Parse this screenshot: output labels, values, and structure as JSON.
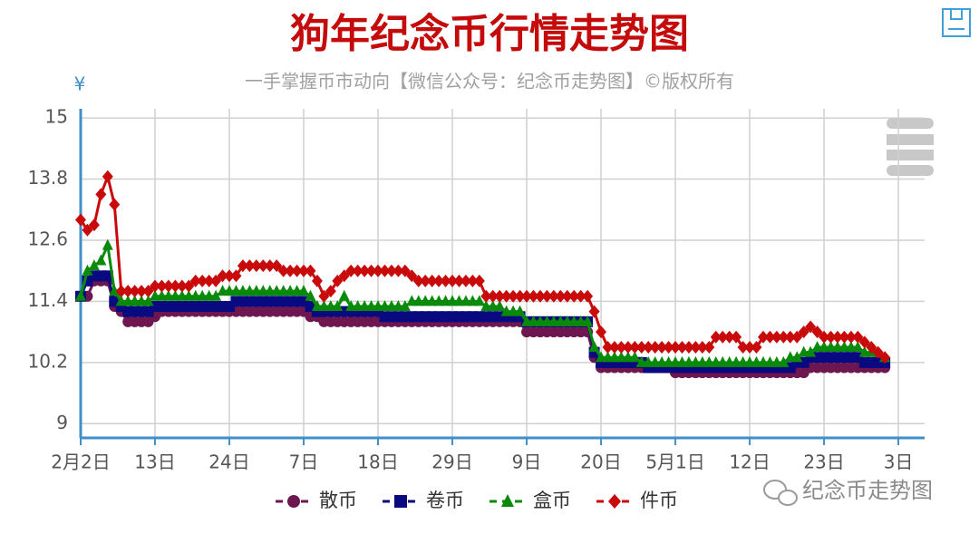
{
  "chart_data": {
    "type": "line",
    "title": "狗年纪念币行情走势图",
    "subtitle": "一手掌握币市动向【微信公众号：纪念币走势图】©版权所有",
    "y_label": "¥",
    "watermark": "纪念币走势图",
    "categories": [
      "2月2日",
      null,
      null,
      null,
      null,
      null,
      null,
      null,
      null,
      null,
      null,
      "13日",
      null,
      null,
      null,
      null,
      null,
      null,
      null,
      null,
      null,
      null,
      "24日",
      null,
      null,
      null,
      null,
      null,
      null,
      null,
      null,
      null,
      null,
      "7日",
      null,
      null,
      null,
      null,
      null,
      null,
      null,
      null,
      null,
      null,
      "18日",
      null,
      null,
      null,
      null,
      null,
      null,
      null,
      null,
      null,
      null,
      "29日",
      null,
      null,
      null,
      null,
      null,
      null,
      null,
      null,
      null,
      null,
      "9日",
      null,
      null,
      null,
      null,
      null,
      null,
      null,
      null,
      null,
      null,
      "20日",
      null,
      null,
      null,
      null,
      null,
      null,
      null,
      null,
      null,
      null,
      "5月1日",
      null,
      null,
      null,
      null,
      null,
      null,
      null,
      null,
      null,
      null,
      "12日",
      null,
      null,
      null,
      null,
      null,
      null,
      null,
      null,
      null,
      null,
      "23日",
      null,
      null,
      null,
      null,
      null,
      null,
      null,
      null,
      null,
      null,
      "3日"
    ],
    "series": [
      {
        "name": "散币",
        "color": "#6e1650",
        "marker": "circle",
        "values": [
          11.5,
          11.5,
          11.8,
          11.8,
          11.8,
          11.3,
          11.2,
          11.0,
          11.0,
          11.0,
          11.0,
          11.1,
          11.2,
          11.2,
          11.2,
          11.2,
          11.2,
          11.2,
          11.2,
          11.2,
          11.2,
          11.2,
          11.2,
          11.2,
          11.2,
          11.2,
          11.2,
          11.2,
          11.2,
          11.2,
          11.2,
          11.2,
          11.2,
          11.2,
          11.1,
          11.1,
          11.0,
          11.0,
          11.0,
          11.0,
          11.0,
          11.0,
          11.0,
          11.0,
          11.0,
          11.0,
          11.0,
          11.0,
          11.0,
          11.0,
          11.0,
          11.0,
          11.0,
          11.0,
          11.0,
          11.0,
          11.0,
          11.0,
          11.0,
          11.0,
          11.0,
          11.0,
          11.0,
          11.0,
          11.0,
          11.0,
          10.8,
          10.8,
          10.8,
          10.8,
          10.8,
          10.8,
          10.8,
          10.8,
          10.8,
          10.8,
          10.3,
          10.1,
          10.1,
          10.1,
          10.1,
          10.1,
          10.1,
          10.1,
          10.1,
          10.1,
          10.1,
          10.1,
          10.0,
          10.0,
          10.0,
          10.0,
          10.0,
          10.0,
          10.0,
          10.0,
          10.0,
          10.0,
          10.0,
          10.0,
          10.0,
          10.0,
          10.0,
          10.0,
          10.0,
          10.0,
          10.0,
          10.0,
          10.1,
          10.1,
          10.1,
          10.1,
          10.1,
          10.1,
          10.1,
          10.1,
          10.1,
          10.1,
          10.1,
          10.1,
          null,
          null
        ]
      },
      {
        "name": "卷币",
        "color": "#0a0a80",
        "marker": "square",
        "values": [
          11.5,
          11.8,
          11.9,
          11.9,
          11.9,
          11.4,
          11.3,
          11.2,
          11.2,
          11.2,
          11.2,
          11.3,
          11.3,
          11.3,
          11.3,
          11.3,
          11.3,
          11.3,
          11.3,
          11.3,
          11.3,
          11.3,
          11.3,
          11.4,
          11.4,
          11.4,
          11.4,
          11.4,
          11.4,
          11.4,
          11.4,
          11.4,
          11.4,
          11.4,
          11.3,
          11.2,
          11.2,
          11.2,
          11.2,
          11.2,
          11.2,
          11.2,
          11.2,
          11.2,
          11.2,
          11.1,
          11.1,
          11.1,
          11.1,
          11.1,
          11.1,
          11.1,
          11.1,
          11.1,
          11.1,
          11.1,
          11.1,
          11.1,
          11.1,
          11.1,
          11.1,
          11.1,
          11.1,
          11.1,
          11.1,
          11.1,
          11.0,
          11.0,
          11.0,
          11.0,
          11.0,
          11.0,
          11.0,
          11.0,
          11.0,
          11.0,
          10.4,
          10.2,
          10.2,
          10.2,
          10.2,
          10.2,
          10.2,
          10.2,
          10.1,
          10.1,
          10.1,
          10.1,
          10.1,
          10.1,
          10.1,
          10.1,
          10.1,
          10.1,
          10.1,
          10.1,
          10.1,
          10.1,
          10.1,
          10.1,
          10.1,
          10.1,
          10.1,
          10.1,
          10.1,
          10.1,
          10.2,
          10.2,
          10.3,
          10.3,
          10.3,
          10.3,
          10.3,
          10.3,
          10.3,
          10.3,
          10.2,
          10.2,
          10.2,
          10.2,
          null,
          null
        ]
      },
      {
        "name": "盒币",
        "color": "#0a8a0a",
        "marker": "triangle",
        "values": [
          11.5,
          12.0,
          12.1,
          12.2,
          12.5,
          11.6,
          11.4,
          11.4,
          11.4,
          11.4,
          11.4,
          11.5,
          11.5,
          11.5,
          11.5,
          11.5,
          11.5,
          11.5,
          11.5,
          11.5,
          11.5,
          11.6,
          11.6,
          11.6,
          11.6,
          11.6,
          11.6,
          11.6,
          11.6,
          11.6,
          11.6,
          11.6,
          11.6,
          11.6,
          11.5,
          11.3,
          11.3,
          11.3,
          11.3,
          11.5,
          11.3,
          11.3,
          11.3,
          11.3,
          11.3,
          11.3,
          11.3,
          11.3,
          11.3,
          11.4,
          11.4,
          11.4,
          11.4,
          11.4,
          11.4,
          11.4,
          11.4,
          11.4,
          11.4,
          11.4,
          11.3,
          11.3,
          11.3,
          11.2,
          11.2,
          11.2,
          11.0,
          11.0,
          11.0,
          11.0,
          11.0,
          11.0,
          11.0,
          11.0,
          11.0,
          11.0,
          10.5,
          10.3,
          10.3,
          10.3,
          10.3,
          10.3,
          10.3,
          10.2,
          10.2,
          10.2,
          10.2,
          10.2,
          10.2,
          10.2,
          10.2,
          10.2,
          10.2,
          10.2,
          10.2,
          10.2,
          10.2,
          10.2,
          10.2,
          10.2,
          10.2,
          10.2,
          10.2,
          10.2,
          10.2,
          10.3,
          10.3,
          10.4,
          10.4,
          10.5,
          10.5,
          10.5,
          10.5,
          10.5,
          10.5,
          10.5,
          10.4,
          10.4,
          10.4,
          10.3,
          null,
          null
        ]
      },
      {
        "name": "件币",
        "color": "#c80a0a",
        "marker": "diamond",
        "values": [
          13.0,
          12.8,
          12.9,
          13.5,
          13.85,
          13.3,
          11.6,
          11.6,
          11.6,
          11.6,
          11.6,
          11.7,
          11.7,
          11.7,
          11.7,
          11.7,
          11.7,
          11.8,
          11.8,
          11.8,
          11.8,
          11.9,
          11.9,
          11.9,
          12.1,
          12.1,
          12.1,
          12.1,
          12.1,
          12.1,
          12.0,
          12.0,
          12.0,
          12.0,
          12.0,
          11.8,
          11.5,
          11.6,
          11.8,
          11.9,
          12.0,
          12.0,
          12.0,
          12.0,
          12.0,
          12.0,
          12.0,
          12.0,
          12.0,
          11.9,
          11.8,
          11.8,
          11.8,
          11.8,
          11.8,
          11.8,
          11.8,
          11.8,
          11.8,
          11.8,
          11.5,
          11.5,
          11.5,
          11.5,
          11.5,
          11.5,
          11.5,
          11.5,
          11.5,
          11.5,
          11.5,
          11.5,
          11.5,
          11.5,
          11.5,
          11.5,
          11.2,
          10.8,
          10.5,
          10.5,
          10.5,
          10.5,
          10.5,
          10.5,
          10.5,
          10.5,
          10.5,
          10.5,
          10.5,
          10.5,
          10.5,
          10.5,
          10.5,
          10.5,
          10.7,
          10.7,
          10.7,
          10.7,
          10.5,
          10.5,
          10.5,
          10.7,
          10.7,
          10.7,
          10.7,
          10.7,
          10.7,
          10.8,
          10.9,
          10.8,
          10.7,
          10.7,
          10.7,
          10.7,
          10.7,
          10.7,
          10.6,
          10.5,
          10.4,
          10.3,
          null,
          null
        ]
      }
    ],
    "ylim": [
      8.72,
      15.18
    ],
    "yticks": [
      9,
      10.2,
      11.4,
      12.6,
      13.8,
      15
    ],
    "grid": true,
    "legend": "bottom"
  }
}
